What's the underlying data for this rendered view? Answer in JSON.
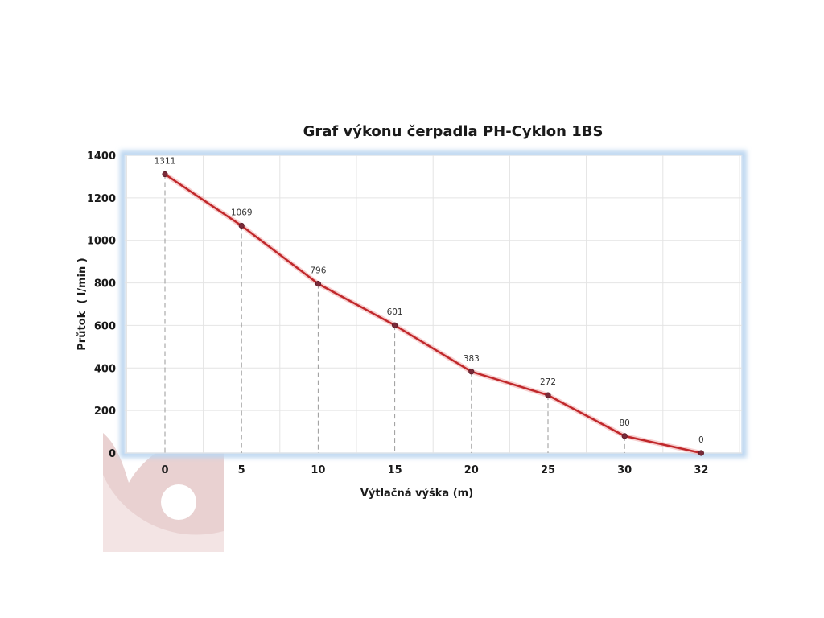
{
  "chart_data": {
    "type": "line",
    "title": "Graf výkonu čerpadla PH-Cyklon 1BS",
    "xlabel": "Výtlačná výška (m)",
    "ylabel": "Průtok  ( l/min )",
    "categories": [
      "0",
      "5",
      "10",
      "15",
      "20",
      "25",
      "30",
      "32"
    ],
    "series": [
      {
        "values": [
          1311,
          1069,
          796,
          601,
          383,
          272,
          80,
          0
        ]
      }
    ],
    "data_labels": [
      "1311",
      "1069",
      "796",
      "601",
      "383",
      "272",
      "80",
      "0"
    ],
    "ylim": [
      0,
      1400
    ],
    "yticks": [
      "0",
      "200",
      "400",
      "600",
      "800",
      "1000",
      "1200",
      "1400"
    ],
    "grid": true,
    "drop_lines": true,
    "colors": {
      "line": "#c0282b",
      "marker": "#7a2a38",
      "grid": "#e4e4e4",
      "glow": "#bcd6f0",
      "logo": "#e8cfcf"
    },
    "logo_icon": "company-logo-watermark"
  }
}
